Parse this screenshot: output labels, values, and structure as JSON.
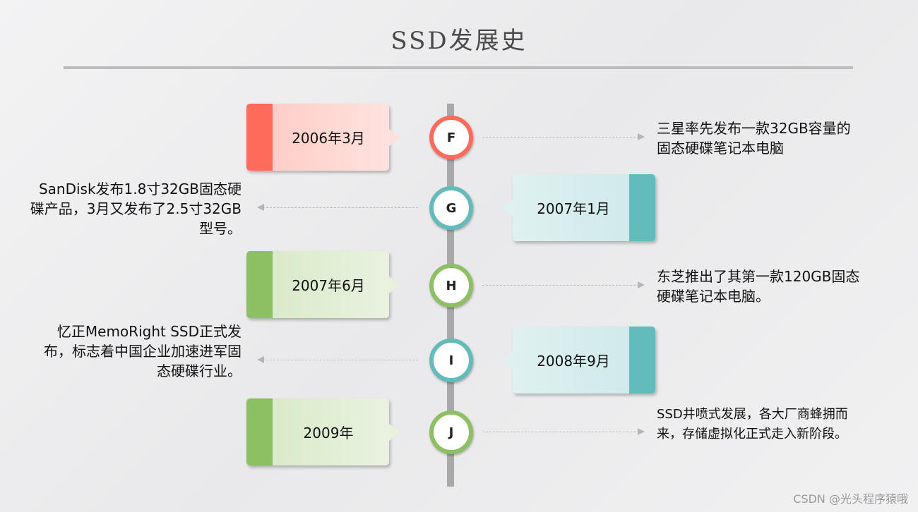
{
  "title": "SSD发展史",
  "colors": {
    "red": "#ff6b5b",
    "red_light": "#ffd7d2",
    "teal": "#63bcbb",
    "teal_light": "#d4ecec",
    "green": "#8cc063",
    "green_light": "#e3efd6"
  },
  "events": [
    {
      "node": "F",
      "date": "2006年3月",
      "description": "三星率先发布一款32GB容量的固态硬碟笔记本电脑"
    },
    {
      "node": "G",
      "date": "2007年1月",
      "description": "SanDisk发布1.8寸32GB固态硬碟产品，3月又发布了2.5寸32GB型号。"
    },
    {
      "node": "H",
      "date": "2007年6月",
      "description": "东芝推出了其第一款120GB固态硬碟笔记本电脑。"
    },
    {
      "node": "I",
      "date": "2008年9月",
      "description": "忆正MemoRight SSD正式发布，标志着中国企业加速进军固态硬碟行业。"
    },
    {
      "node": "J",
      "date": "2009年",
      "description": "SSD井喷式发展，各大厂商蜂拥而来，存储虚拟化正式走入新阶段。"
    }
  ],
  "watermark": "CSDN @光头程序猿哦"
}
